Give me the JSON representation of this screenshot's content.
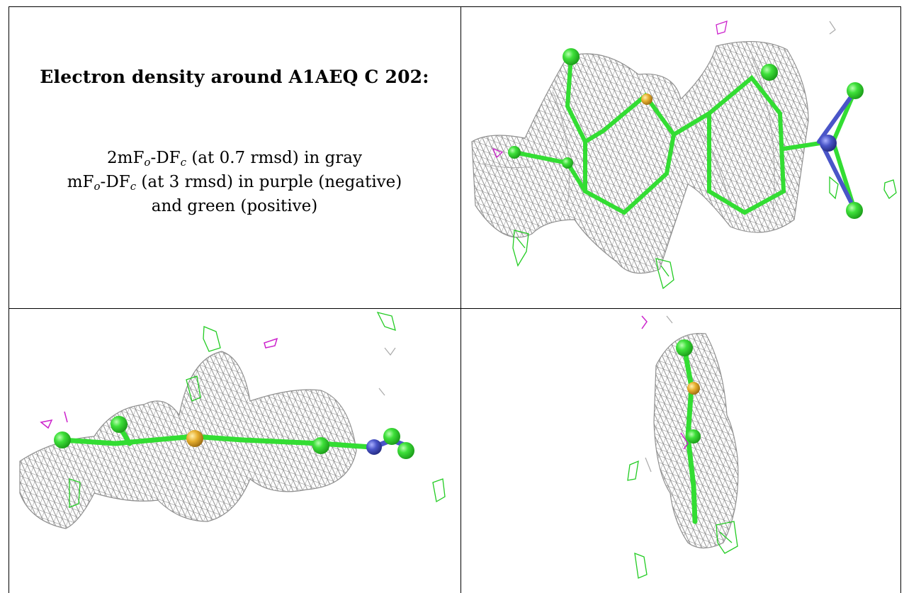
{
  "legend": {
    "title": "Electron density around A1AEQ C 202:",
    "line1": {
      "a": "2mF",
      "sub1": "o",
      "b": "-DF",
      "sub2": "c",
      "c": " (at 0.7 rmsd) in gray"
    },
    "line2": {
      "a": "mF",
      "sub1": "o",
      "b": "-DF",
      "sub2": "c",
      "c": " (at 3 rmsd) in purple (negative)"
    },
    "line3": "and green (positive)"
  },
  "panels": [
    {
      "view": "top-right"
    },
    {
      "view": "bottom-left"
    },
    {
      "view": "bottom-right"
    }
  ],
  "colors": {
    "mesh_gray": "#8a8a8a",
    "carbon_green": "#33dd33",
    "sulfur_yellow": "#e8b030",
    "nitrogen_blue": "#4a55c8",
    "negative_purple": "#cc22cc",
    "positive_green": "#22cc22"
  }
}
